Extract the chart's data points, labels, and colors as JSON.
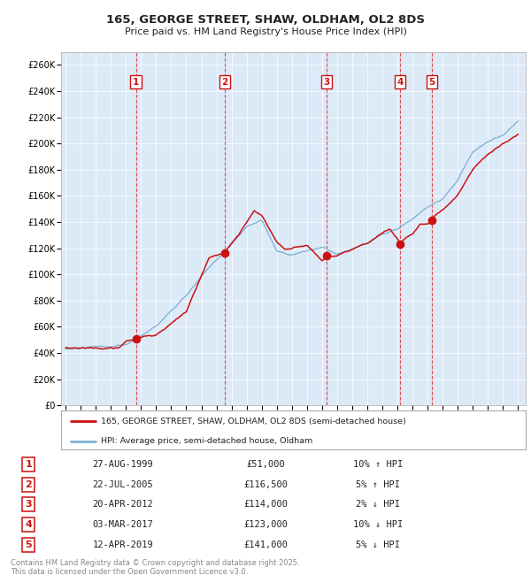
{
  "title": "165, GEORGE STREET, SHAW, OLDHAM, OL2 8DS",
  "subtitle": "Price paid vs. HM Land Registry's House Price Index (HPI)",
  "ylim": [
    0,
    270000
  ],
  "yticks": [
    0,
    20000,
    40000,
    60000,
    80000,
    100000,
    120000,
    140000,
    160000,
    180000,
    200000,
    220000,
    240000,
    260000
  ],
  "ytick_labels": [
    "£0",
    "£20K",
    "£40K",
    "£60K",
    "£80K",
    "£100K",
    "£120K",
    "£140K",
    "£160K",
    "£180K",
    "£200K",
    "£220K",
    "£240K",
    "£260K"
  ],
  "plot_bg_color": "#dce9f7",
  "hpi_line_color": "#7ab0d4",
  "price_line_color": "#cc1111",
  "dot_color": "#cc1111",
  "vline_color": "#dd3333",
  "sale_dates_num": [
    1999.66,
    2005.55,
    2012.3,
    2017.17,
    2019.28
  ],
  "sale_prices": [
    51000,
    116500,
    114000,
    123000,
    141000
  ],
  "sale_labels": [
    "1",
    "2",
    "3",
    "4",
    "5"
  ],
  "legend_price_label": "165, GEORGE STREET, SHAW, OLDHAM, OL2 8DS (semi-detached house)",
  "legend_hpi_label": "HPI: Average price, semi-detached house, Oldham",
  "table_rows": [
    [
      "1",
      "27-AUG-1999",
      "£51,000",
      "10% ↑ HPI"
    ],
    [
      "2",
      "22-JUL-2005",
      "£116,500",
      "5% ↑ HPI"
    ],
    [
      "3",
      "20-APR-2012",
      "£114,000",
      "2% ↓ HPI"
    ],
    [
      "4",
      "03-MAR-2017",
      "£123,000",
      "10% ↓ HPI"
    ],
    [
      "5",
      "12-APR-2019",
      "£141,000",
      "5% ↓ HPI"
    ]
  ],
  "footer": "Contains HM Land Registry data © Crown copyright and database right 2025.\nThis data is licensed under the Open Government Licence v3.0.",
  "xtick_years": [
    1995,
    1996,
    1997,
    1998,
    1999,
    2000,
    2001,
    2002,
    2003,
    2004,
    2005,
    2006,
    2007,
    2008,
    2009,
    2010,
    2011,
    2012,
    2013,
    2014,
    2015,
    2016,
    2017,
    2018,
    2019,
    2020,
    2021,
    2022,
    2023,
    2024,
    2025
  ],
  "hpi_kp_x": [
    1995,
    1996,
    1997,
    1998,
    1999,
    2000,
    2001,
    2002,
    2003,
    2004,
    2005,
    2006,
    2007,
    2008,
    2009,
    2010,
    2011,
    2012,
    2013,
    2014,
    2015,
    2016,
    2017,
    2018,
    2019,
    2020,
    2021,
    2022,
    2023,
    2024,
    2025
  ],
  "hpi_kp_y": [
    43000,
    44000,
    44500,
    44200,
    45500,
    52000,
    60000,
    72000,
    83000,
    97000,
    110000,
    122000,
    135000,
    141000,
    117000,
    115000,
    118000,
    121000,
    115000,
    118000,
    123000,
    129000,
    133000,
    141000,
    150000,
    157000,
    171000,
    193000,
    201000,
    206000,
    217000
  ],
  "price_kp_x": [
    1995,
    1997,
    1998.5,
    1999.0,
    1999.66,
    2001,
    2003,
    2004.5,
    2005.55,
    2006.5,
    2007.0,
    2007.5,
    2008.0,
    2009.0,
    2009.5,
    2010,
    2011,
    2012.0,
    2012.3,
    2013,
    2014,
    2015,
    2016,
    2016.5,
    2017.17,
    2018,
    2018.5,
    2019.0,
    2019.28,
    2020,
    2021,
    2022,
    2023,
    2024,
    2025
  ],
  "price_kp_y": [
    44000,
    44500,
    44000,
    49000,
    51000,
    55000,
    73000,
    113000,
    116500,
    130000,
    140000,
    148000,
    145000,
    125000,
    120000,
    120000,
    123000,
    111000,
    114000,
    115000,
    118000,
    122000,
    130000,
    133000,
    123000,
    130000,
    137000,
    137000,
    141000,
    148000,
    160000,
    180000,
    192000,
    200000,
    207000
  ]
}
